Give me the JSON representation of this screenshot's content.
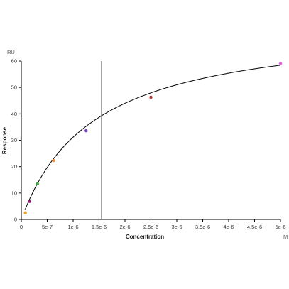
{
  "chart_data": {
    "type": "scatter",
    "xlabel": "Concentration",
    "ylabel": "Response",
    "x_unit": "M",
    "y_unit": "RU",
    "xlim": [
      0,
      5e-06
    ],
    "ylim": [
      0,
      60
    ],
    "x_ticks": [
      0,
      5e-07,
      1e-06,
      1.5e-06,
      2e-06,
      2.5e-06,
      3e-06,
      3.5e-06,
      4e-06,
      4.5e-06,
      5e-06
    ],
    "x_tick_labels": [
      "0",
      "5e-7",
      "1e-6",
      "1.5e-6",
      "2e-6",
      "2.5e-6",
      "3e-6",
      "3.5e-6",
      "4e-6",
      "4.5e-6",
      "5e-6"
    ],
    "y_ticks": [
      0,
      10,
      20,
      30,
      40,
      50,
      60
    ],
    "y_tick_labels": [
      "0",
      "10",
      "20",
      "30",
      "40",
      "50",
      "60"
    ],
    "grid": false,
    "points": [
      {
        "x": 7.8e-08,
        "y": 2.5,
        "color": "#e8a33a"
      },
      {
        "x": 1.56e-07,
        "y": 6.8,
        "color": "#8b1a6b"
      },
      {
        "x": 3.13e-07,
        "y": 13.5,
        "color": "#3aa63a"
      },
      {
        "x": 6.25e-07,
        "y": 22.3,
        "color": "#e8913a"
      },
      {
        "x": 1.25e-06,
        "y": 33.6,
        "color": "#7a3ad0"
      },
      {
        "x": 2.5e-06,
        "y": 46.3,
        "color": "#b02a2a"
      },
      {
        "x": 5e-06,
        "y": 59.0,
        "color": "#e060e0"
      }
    ],
    "fit": {
      "model": "steady-state affinity",
      "Rmax": 74.8,
      "KD": 1.4e-06
    },
    "vline_x": 1.55e-06
  }
}
